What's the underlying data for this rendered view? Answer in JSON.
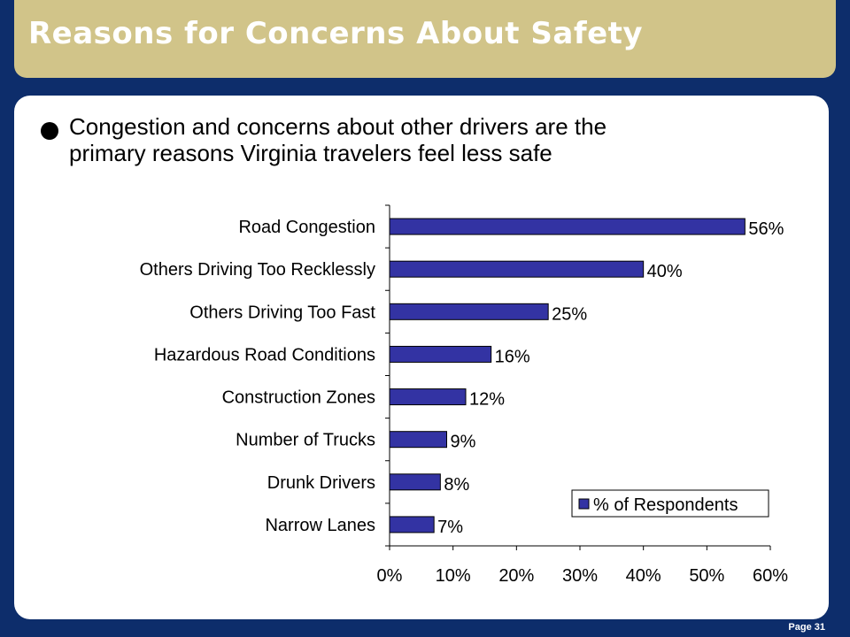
{
  "header": {
    "title": "Reasons for Concerns About Safety"
  },
  "bullet": {
    "line1": "Congestion and concerns about other drivers are the",
    "line2": "primary reasons Virginia travelers feel less safe"
  },
  "footer": {
    "page": "Page 31"
  },
  "colors": {
    "bar": "#3333a3",
    "background": "#0d2d6b",
    "title_bar": "#d1c489"
  },
  "chart_data": {
    "type": "bar",
    "orientation": "horizontal",
    "categories": [
      "Road Congestion",
      "Others Driving Too Recklessly",
      "Others Driving Too Fast",
      "Hazardous Road Conditions",
      "Construction Zones",
      "Number of Trucks",
      "Drunk Drivers",
      "Narrow Lanes"
    ],
    "series": [
      {
        "name": "% of Respondents",
        "values": [
          56,
          40,
          25,
          16,
          12,
          9,
          8,
          7
        ]
      }
    ],
    "data_labels": [
      "56%",
      "40%",
      "25%",
      "16%",
      "12%",
      "9%",
      "8%",
      "7%"
    ],
    "xlim": [
      0,
      60
    ],
    "xticks": [
      0,
      10,
      20,
      30,
      40,
      50,
      60
    ],
    "xtick_labels": [
      "0%",
      "10%",
      "20%",
      "30%",
      "40%",
      "50%",
      "60%"
    ],
    "legend": {
      "label": "% of Respondents",
      "position": "bottom-right"
    },
    "grid": false
  }
}
